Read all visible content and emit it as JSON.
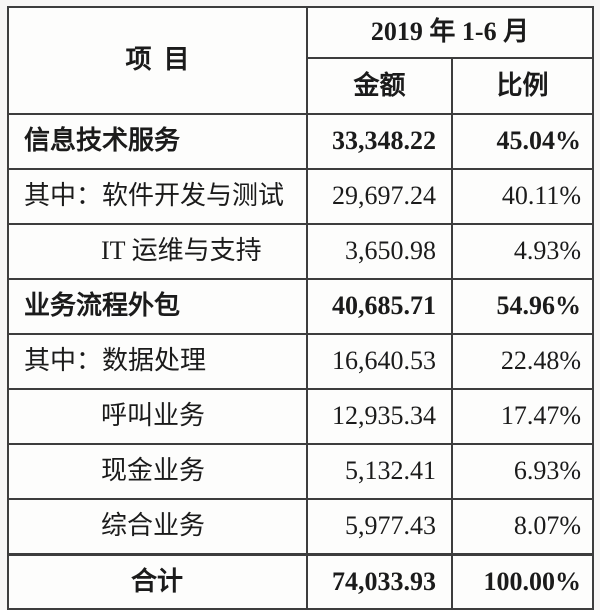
{
  "chart_data": {
    "type": "table",
    "title": "2019 年 1-6 月",
    "columns": [
      "项目",
      "金额",
      "比例"
    ],
    "header": {
      "item": "项目",
      "period": "2019 年 1-6 月",
      "amount": "金额",
      "ratio": "比例"
    },
    "rows": [
      {
        "label": "信息技术服务",
        "amount": "33,348.22",
        "ratio": "45.04%",
        "emphasis": "bold",
        "indent": "none"
      },
      {
        "label": "其中：软件开发与测试",
        "amount": "29,697.24",
        "ratio": "40.11%",
        "emphasis": "normal",
        "indent": "none"
      },
      {
        "label": "IT 运维与支持",
        "amount": "3,650.98",
        "ratio": "4.93%",
        "emphasis": "normal",
        "indent": "sub"
      },
      {
        "label": "业务流程外包",
        "amount": "40,685.71",
        "ratio": "54.96%",
        "emphasis": "bold",
        "indent": "none"
      },
      {
        "label": "其中：数据处理",
        "amount": "16,640.53",
        "ratio": "22.48%",
        "emphasis": "normal",
        "indent": "none"
      },
      {
        "label": "呼叫业务",
        "amount": "12,935.34",
        "ratio": "17.47%",
        "emphasis": "normal",
        "indent": "sub"
      },
      {
        "label": "现金业务",
        "amount": "5,132.41",
        "ratio": "6.93%",
        "emphasis": "normal",
        "indent": "sub"
      },
      {
        "label": "综合业务",
        "amount": "5,977.43",
        "ratio": "8.07%",
        "emphasis": "normal",
        "indent": "sub"
      },
      {
        "label": "合计",
        "amount": "74,033.93",
        "ratio": "100.00%",
        "emphasis": "bold",
        "indent": "total"
      }
    ],
    "colors": {
      "text": "#1b1b1b",
      "border": "#3d3d3d",
      "cell_background": "#fdfdfc",
      "page_background": "#f7f6f5"
    }
  }
}
